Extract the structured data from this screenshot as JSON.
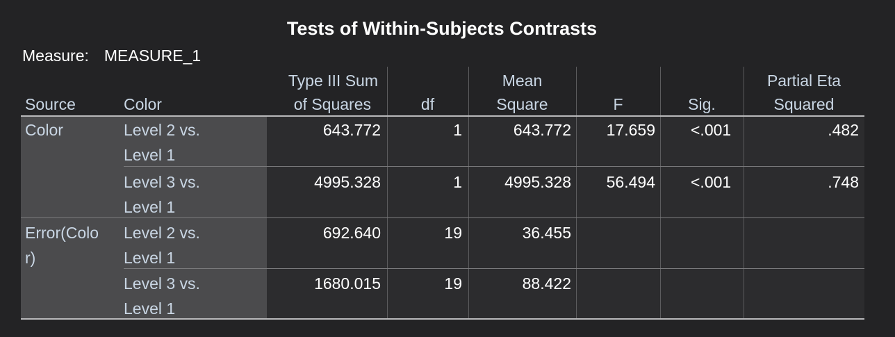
{
  "title": "Tests of Within-Subjects Contrasts",
  "measure": {
    "label": "Measure:",
    "value": "MEASURE_1"
  },
  "headers": {
    "source": "Source",
    "color": "Color",
    "ss_line1": "Type III Sum",
    "ss_line2": "of Squares",
    "df": "df",
    "ms_line1": "Mean",
    "ms_line2": "Square",
    "f": "F",
    "sig": "Sig.",
    "eta_line1": "Partial Eta",
    "eta_line2": "Squared"
  },
  "groups": [
    {
      "source_line1": "Color",
      "source_line2": ""
    },
    {
      "source_line1": "Error(Colo",
      "source_line2": "r)"
    }
  ],
  "rows": [
    {
      "level_line1": "Level 2 vs.",
      "level_line2": "Level 1",
      "ss": "643.772",
      "df": "1",
      "ms": "643.772",
      "f": "17.659",
      "sig": "<.001",
      "eta": ".482"
    },
    {
      "level_line1": "Level 3 vs.",
      "level_line2": "Level 1",
      "ss": "4995.328",
      "df": "1",
      "ms": "4995.328",
      "f": "56.494",
      "sig": "<.001",
      "eta": ".748"
    },
    {
      "level_line1": "Level 2 vs.",
      "level_line2": "Level 1",
      "ss": "692.640",
      "df": "19",
      "ms": "36.455",
      "f": "",
      "sig": "",
      "eta": ""
    },
    {
      "level_line1": "Level 3 vs.",
      "level_line2": "Level 1",
      "ss": "1680.015",
      "df": "19",
      "ms": "88.422",
      "f": "",
      "sig": "",
      "eta": ""
    }
  ]
}
